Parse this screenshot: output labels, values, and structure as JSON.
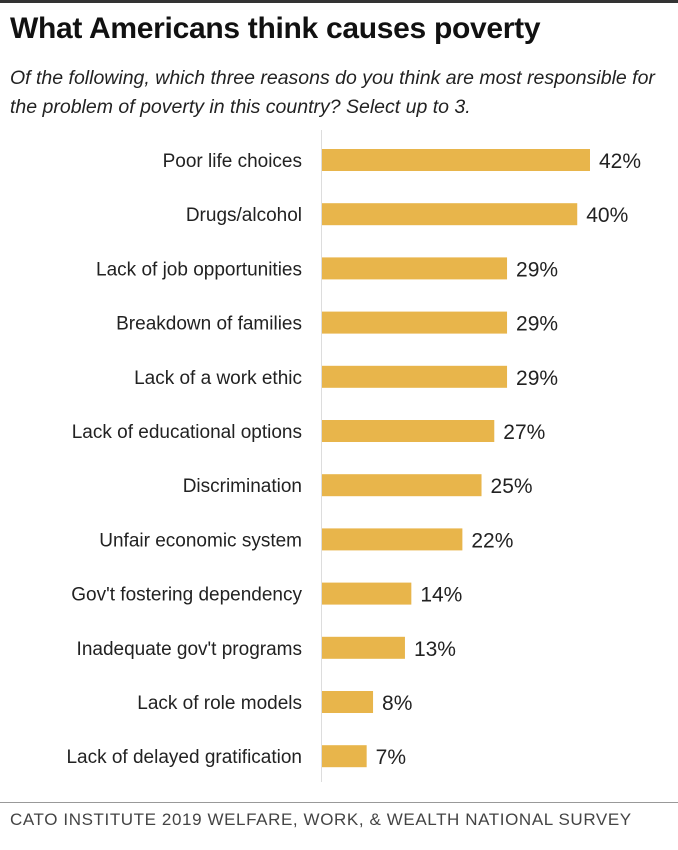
{
  "header": {
    "title": "What Americans think causes poverty",
    "subtitle": "Of the following, which three reasons do you think are most responsible for the problem of poverty in this country? Select up to 3."
  },
  "footer": {
    "source": "CATO INSTITUTE 2019 WELFARE, WORK, & WEALTH NATIONAL SURVEY"
  },
  "colors": {
    "bar": "#E8B54B",
    "axis": "#dddddd"
  },
  "chart_data": {
    "type": "bar",
    "orientation": "horizontal",
    "categories": [
      "Poor life choices",
      "Drugs/alcohol",
      "Lack of job opportunities",
      "Breakdown of families",
      "Lack of a work ethic",
      "Lack of educational options",
      "Discrimination",
      "Unfair economic system",
      "Gov't fostering dependency",
      "Inadequate gov't programs",
      "Lack of role models",
      "Lack of delayed gratification"
    ],
    "values": [
      42,
      40,
      29,
      29,
      29,
      27,
      25,
      22,
      14,
      13,
      8,
      7
    ],
    "value_labels": [
      "42%",
      "40%",
      "29%",
      "29%",
      "29%",
      "27%",
      "25%",
      "22%",
      "14%",
      "13%",
      "8%",
      "7%"
    ],
    "title": "What Americans think causes poverty",
    "xlim": [
      0,
      42
    ],
    "grid": false,
    "legend": "none"
  }
}
